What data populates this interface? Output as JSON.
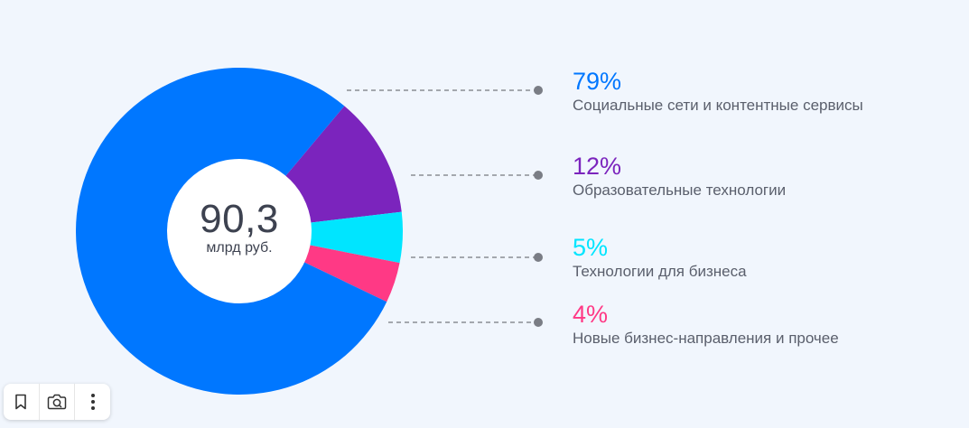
{
  "chart_data": {
    "type": "pie",
    "title": "",
    "center": {
      "value": "90,3",
      "unit": "млрд руб."
    },
    "slices": [
      {
        "label": "Социальные сети и контентные сервисы",
        "percent_label": "79%",
        "value": 79,
        "color": "#0077ff"
      },
      {
        "label": "Образовательные технологии",
        "percent_label": "12%",
        "value": 12,
        "color": "#7b24bd"
      },
      {
        "label": "Технологии для бизнеса",
        "percent_label": "5%",
        "value": 5,
        "color": "#00e5ff"
      },
      {
        "label": "Новые бизнес-направления и прочее",
        "percent_label": "4%",
        "value": 4,
        "color": "#ff3985"
      }
    ],
    "legend_placement": "right"
  },
  "toolbar": {
    "icons": [
      "bookmark-icon",
      "camera-icon",
      "more-vertical-icon"
    ]
  }
}
